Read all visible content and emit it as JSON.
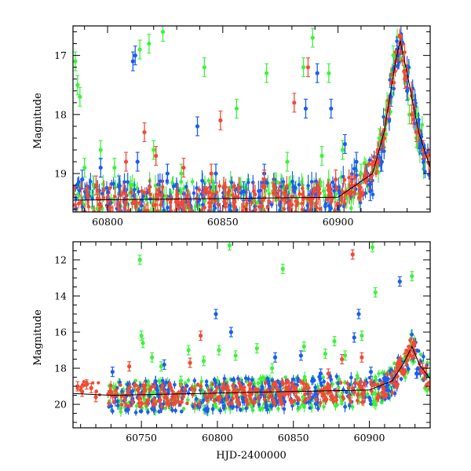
{
  "chart_data": [
    {
      "type": "scatter",
      "ylabel": "Magnitude",
      "xlabel": "",
      "xlim": [
        60785,
        60940
      ],
      "ylim": [
        19.65,
        16.5
      ],
      "y_inverted": true,
      "grid": false,
      "x_ticks": [
        60800,
        60850,
        60900
      ],
      "y_ticks": [
        17,
        18,
        19
      ],
      "marker_colors": {
        "green": "#3df23d",
        "blue": "#1a5df0",
        "red": "#f24a33"
      },
      "baseline_model": {
        "x": [
          60785,
          60900,
          60915,
          60920,
          60925,
          60927,
          60930,
          60935,
          60940
        ],
        "y": [
          19.45,
          19.4,
          19.0,
          18.3,
          17.1,
          16.75,
          17.3,
          18.3,
          18.9
        ]
      },
      "series": [
        {
          "color": "green",
          "x": [
            60786,
            60787,
            60788,
            60790,
            60794,
            60797,
            60803,
            60814,
            60818,
            60820,
            60824,
            60832,
            60842,
            60856,
            60869,
            60878,
            60885,
            60889,
            60893,
            60896,
            60902,
            60910,
            60918,
            60924,
            60931,
            60934
          ],
          "y": [
            17.1,
            17.5,
            17.7,
            18.9,
            19.2,
            18.6,
            18.9,
            16.9,
            16.8,
            18.6,
            16.6,
            19.0,
            17.2,
            17.9,
            17.3,
            18.8,
            17.2,
            16.7,
            18.7,
            17.3,
            18.6,
            19.0,
            18.4,
            17.0,
            18.0,
            18.4
          ]
        },
        {
          "color": "blue",
          "x": [
            60789,
            60797,
            60805,
            60811,
            60812,
            60813,
            60826,
            60839,
            60847,
            60859,
            60868,
            60886,
            60891,
            60897,
            60903,
            60908,
            60914,
            60919,
            60923,
            60926,
            60930,
            60936
          ],
          "y": [
            19.1,
            18.9,
            19.2,
            17.1,
            17.0,
            18.8,
            19.0,
            18.2,
            19.0,
            19.3,
            19.0,
            17.9,
            17.3,
            17.9,
            18.5,
            18.8,
            19.3,
            18.8,
            17.7,
            17.0,
            17.6,
            18.5
          ]
        },
        {
          "color": "red",
          "x": [
            60795,
            60808,
            60816,
            60821,
            60833,
            60845,
            60849,
            60868,
            60881,
            60887,
            60899,
            60906,
            60912,
            60917,
            60920,
            60922,
            60925,
            60927,
            60929,
            60932,
            60934,
            60937
          ],
          "y": [
            19.2,
            18.8,
            18.3,
            18.7,
            18.9,
            19.0,
            18.1,
            19.1,
            17.8,
            17.2,
            19.1,
            19.2,
            19.0,
            18.8,
            18.4,
            17.9,
            17.1,
            16.8,
            17.4,
            18.0,
            18.3,
            18.6
          ]
        }
      ]
    },
    {
      "type": "scatter",
      "ylabel": "Magnitude",
      "xlabel": "HJD-2400000",
      "xlim": [
        60705,
        60940
      ],
      "ylim": [
        21.3,
        11
      ],
      "y_inverted": true,
      "grid": false,
      "x_ticks": [
        60750,
        60800,
        60850,
        60900
      ],
      "y_ticks": [
        12,
        14,
        16,
        18,
        20
      ],
      "marker_colors": {
        "green": "#3df23d",
        "blue": "#1a5df0",
        "red": "#f24a33"
      },
      "baseline_model": {
        "x": [
          60705,
          60730,
          60900,
          60915,
          60922,
          60928,
          60933,
          60940
        ],
        "y": [
          19.4,
          19.5,
          19.2,
          18.7,
          17.8,
          16.8,
          17.8,
          18.6
        ]
      },
      "series": [
        {
          "color": "green",
          "x": [
            60749,
            60750,
            60751,
            60757,
            60763,
            60776,
            60781,
            60791,
            60801,
            60808,
            60812,
            60826,
            60836,
            60843,
            60857,
            60871,
            60877,
            60884,
            60895,
            60902,
            60904,
            60923,
            60928
          ],
          "y": [
            12.0,
            16.2,
            16.6,
            17.4,
            17.9,
            18.7,
            17.0,
            17.6,
            17.0,
            11.2,
            17.3,
            16.9,
            18.0,
            12.5,
            16.8,
            17.2,
            16.5,
            17.3,
            16.2,
            11.3,
            13.8,
            17.5,
            12.9
          ]
        },
        {
          "color": "blue",
          "x": [
            60731,
            60765,
            60799,
            60809,
            60838,
            60855,
            60868,
            60890,
            60893,
            60901,
            60920,
            60931
          ],
          "y": [
            18.2,
            17.8,
            15.0,
            16.0,
            17.4,
            17.3,
            18.3,
            16.3,
            15.0,
            18.2,
            13.2,
            18.3
          ]
        },
        {
          "color": "red",
          "x": [
            60708,
            60711,
            60714,
            60717,
            60720,
            60742,
            60782,
            60789,
            60834,
            60858,
            60873,
            60882,
            60889,
            60895,
            60910,
            60924,
            60926,
            60928,
            60930,
            60935
          ],
          "y": [
            19.0,
            19.3,
            18.9,
            19.1,
            19.6,
            17.9,
            17.7,
            16.2,
            19.6,
            19.1,
            18.3,
            17.5,
            11.7,
            17.4,
            19.4,
            17.6,
            17.1,
            16.8,
            17.2,
            18.0
          ]
        }
      ]
    }
  ]
}
